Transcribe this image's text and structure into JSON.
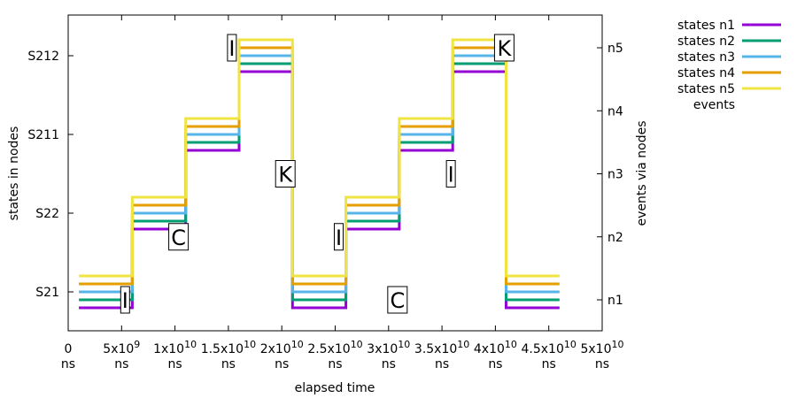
{
  "chart_data": {
    "type": "line",
    "step": true,
    "xlabel": "elapsed time",
    "ylabel_left": "states in nodes",
    "ylabel_right": "events via nodes",
    "xlim": [
      0,
      50000000000
    ],
    "x_ticks": [
      {
        "value": 0,
        "label": "0",
        "exp": "",
        "unit": "ns"
      },
      {
        "value": 5000000000,
        "label": "5x10",
        "exp": "9",
        "unit": "ns"
      },
      {
        "value": 10000000000,
        "label": "1x10",
        "exp": "10",
        "unit": "ns"
      },
      {
        "value": 15000000000,
        "label": "1.5x10",
        "exp": "10",
        "unit": "ns"
      },
      {
        "value": 20000000000,
        "label": "2x10",
        "exp": "10",
        "unit": "ns"
      },
      {
        "value": 25000000000,
        "label": "2.5x10",
        "exp": "10",
        "unit": "ns"
      },
      {
        "value": 30000000000,
        "label": "3x10",
        "exp": "10",
        "unit": "ns"
      },
      {
        "value": 35000000000,
        "label": "3.5x10",
        "exp": "10",
        "unit": "ns"
      },
      {
        "value": 40000000000,
        "label": "4x10",
        "exp": "10",
        "unit": "ns"
      },
      {
        "value": 45000000000,
        "label": "4.5x10",
        "exp": "10",
        "unit": "ns"
      },
      {
        "value": 50000000000,
        "label": "5x10",
        "exp": "10",
        "unit": "ns"
      }
    ],
    "y_left_categories": [
      "S21",
      "S22",
      "S211",
      "S212"
    ],
    "y_right_categories": [
      "n1",
      "n2",
      "n3",
      "n4",
      "n5"
    ],
    "series": [
      {
        "name": "states n1",
        "color": "#9400d3",
        "x": [
          1000000000,
          6000000000,
          6000000000,
          11000000000,
          11000000000,
          16000000000,
          16000000000,
          21000000000,
          21000000000,
          26000000000,
          26000000000,
          31000000000,
          31000000000,
          36000000000,
          36000000000,
          41000000000,
          41000000000,
          46000000000
        ],
        "y": [
          "S21",
          "S21",
          "S22",
          "S22",
          "S211",
          "S211",
          "S212",
          "S212",
          "S21",
          "S21",
          "S22",
          "S22",
          "S211",
          "S211",
          "S212",
          "S212",
          "S21",
          "S21"
        ]
      },
      {
        "name": "states n2",
        "color": "#009e73",
        "x": [
          1000000000,
          6000000000,
          6000000000,
          11000000000,
          11000000000,
          16000000000,
          16000000000,
          21000000000,
          21000000000,
          26000000000,
          26000000000,
          31000000000,
          31000000000,
          36000000000,
          36000000000,
          41000000000,
          41000000000,
          46000000000
        ],
        "y": [
          "S21",
          "S21",
          "S22",
          "S22",
          "S211",
          "S211",
          "S212",
          "S212",
          "S21",
          "S21",
          "S22",
          "S22",
          "S211",
          "S211",
          "S212",
          "S212",
          "S21",
          "S21"
        ]
      },
      {
        "name": "states n3",
        "color": "#56b4e9",
        "x": [
          1000000000,
          6000000000,
          6000000000,
          11000000000,
          11000000000,
          16000000000,
          16000000000,
          21000000000,
          21000000000,
          26000000000,
          26000000000,
          31000000000,
          31000000000,
          36000000000,
          36000000000,
          41000000000,
          41000000000,
          46000000000
        ],
        "y": [
          "S21",
          "S21",
          "S22",
          "S22",
          "S211",
          "S211",
          "S212",
          "S212",
          "S21",
          "S21",
          "S22",
          "S22",
          "S211",
          "S211",
          "S212",
          "S212",
          "S21",
          "S21"
        ]
      },
      {
        "name": "states n4",
        "color": "#e69f00",
        "x": [
          1000000000,
          6000000000,
          6000000000,
          11000000000,
          11000000000,
          16000000000,
          16000000000,
          21000000000,
          21000000000,
          26000000000,
          26000000000,
          31000000000,
          31000000000,
          36000000000,
          36000000000,
          41000000000,
          41000000000,
          46000000000
        ],
        "y": [
          "S21",
          "S21",
          "S22",
          "S22",
          "S211",
          "S211",
          "S212",
          "S212",
          "S21",
          "S21",
          "S22",
          "S22",
          "S211",
          "S211",
          "S212",
          "S212",
          "S21",
          "S21"
        ]
      },
      {
        "name": "states n5",
        "color": "#f0e442",
        "x": [
          1000000000,
          6000000000,
          6000000000,
          11000000000,
          11000000000,
          16000000000,
          16000000000,
          21000000000,
          21000000000,
          26000000000,
          26000000000,
          31000000000,
          31000000000,
          36000000000,
          36000000000,
          41000000000,
          41000000000,
          46000000000
        ],
        "y": [
          "S21",
          "S21",
          "S22",
          "S22",
          "S211",
          "S211",
          "S212",
          "S212",
          "S21",
          "S21",
          "S22",
          "S22",
          "S211",
          "S211",
          "S212",
          "S212",
          "S21",
          "S21"
        ]
      }
    ],
    "events_legend": "events",
    "events": [
      {
        "x": 5000000000,
        "node": "n1",
        "label": "I"
      },
      {
        "x": 10000000000,
        "node": "n2",
        "label": "C"
      },
      {
        "x": 15000000000,
        "node": "n5",
        "label": "I"
      },
      {
        "x": 20000000000,
        "node": "n3",
        "label": "K"
      },
      {
        "x": 25000000000,
        "node": "n2",
        "label": "I"
      },
      {
        "x": 30500000000,
        "node": "n1",
        "label": "C"
      },
      {
        "x": 35500000000,
        "node": "n3",
        "label": "I"
      },
      {
        "x": 40500000000,
        "node": "n5",
        "label": "K"
      }
    ],
    "legend_position": "top-right outside",
    "grid": false
  }
}
